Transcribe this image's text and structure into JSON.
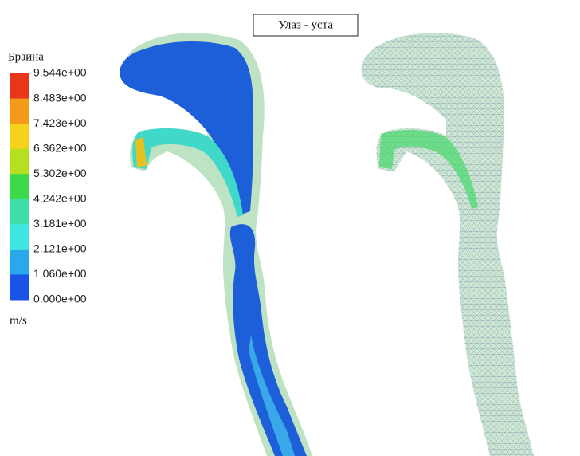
{
  "header": {
    "title": "Улаз - уста"
  },
  "legend": {
    "title": "Брзина",
    "labels": [
      "9.544e+00",
      "8.483e+00",
      "7.423e+00",
      "6.362e+00",
      "5.302e+00",
      "4.242e+00",
      "3.181e+00",
      "2.121e+00",
      "1.060e+00",
      "0.000e+00"
    ],
    "colors": [
      "#e8361a",
      "#f39a1a",
      "#f5d21c",
      "#b4e020",
      "#3cd94a",
      "#3fe0a8",
      "#40e6e2",
      "#2aa8ec",
      "#1a54e6"
    ],
    "unit": "m/s"
  }
}
